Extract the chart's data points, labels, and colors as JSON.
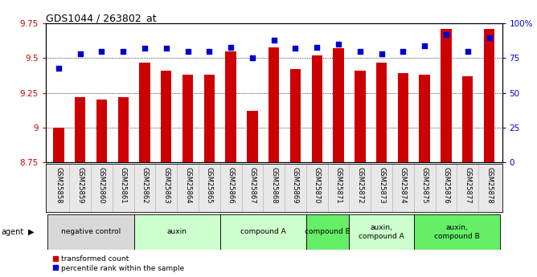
{
  "title": "GDS1044 / 263802_at",
  "samples": [
    "GSM25858",
    "GSM25859",
    "GSM25860",
    "GSM25861",
    "GSM25862",
    "GSM25863",
    "GSM25864",
    "GSM25865",
    "GSM25866",
    "GSM25867",
    "GSM25868",
    "GSM25869",
    "GSM25870",
    "GSM25871",
    "GSM25872",
    "GSM25873",
    "GSM25874",
    "GSM25875",
    "GSM25876",
    "GSM25877",
    "GSM25878"
  ],
  "bar_values": [
    9.0,
    9.22,
    9.2,
    9.22,
    9.47,
    9.41,
    9.38,
    9.38,
    9.55,
    9.12,
    9.58,
    9.42,
    9.52,
    9.57,
    9.41,
    9.47,
    9.39,
    9.38,
    9.71,
    9.37,
    9.71
  ],
  "percentile_values": [
    68,
    78,
    80,
    80,
    82,
    82,
    80,
    80,
    83,
    75,
    88,
    82,
    83,
    85,
    80,
    78,
    80,
    84,
    92,
    80,
    90
  ],
  "bar_color": "#cc0000",
  "dot_color": "#0000cc",
  "ylim_left": [
    8.75,
    9.75
  ],
  "ylim_right": [
    0,
    100
  ],
  "yticks_left": [
    8.75,
    9.0,
    9.25,
    9.5,
    9.75
  ],
  "ytick_labels_left": [
    "8.75",
    "9",
    "9.25",
    "9.5",
    "9.75"
  ],
  "yticks_right": [
    0,
    25,
    50,
    75,
    100
  ],
  "ytick_labels_right": [
    "0",
    "25",
    "50",
    "75",
    "100%"
  ],
  "grid_lines": [
    9.0,
    9.25,
    9.5
  ],
  "agent_groups": [
    {
      "label": "negative control",
      "start": 0,
      "end": 3,
      "color": "#d8d8d8"
    },
    {
      "label": "auxin",
      "start": 4,
      "end": 7,
      "color": "#ccffcc"
    },
    {
      "label": "compound A",
      "start": 8,
      "end": 11,
      "color": "#ccffcc"
    },
    {
      "label": "compound B",
      "start": 12,
      "end": 13,
      "color": "#66ee66"
    },
    {
      "label": "auxin,\ncompound A",
      "start": 14,
      "end": 16,
      "color": "#ccffcc"
    },
    {
      "label": "auxin,\ncompound B",
      "start": 17,
      "end": 20,
      "color": "#66ee66"
    }
  ],
  "sample_bg_color": "#e8e8e8",
  "legend_entries": [
    "transformed count",
    "percentile rank within the sample"
  ],
  "bar_width": 0.5,
  "ybase": 8.75
}
